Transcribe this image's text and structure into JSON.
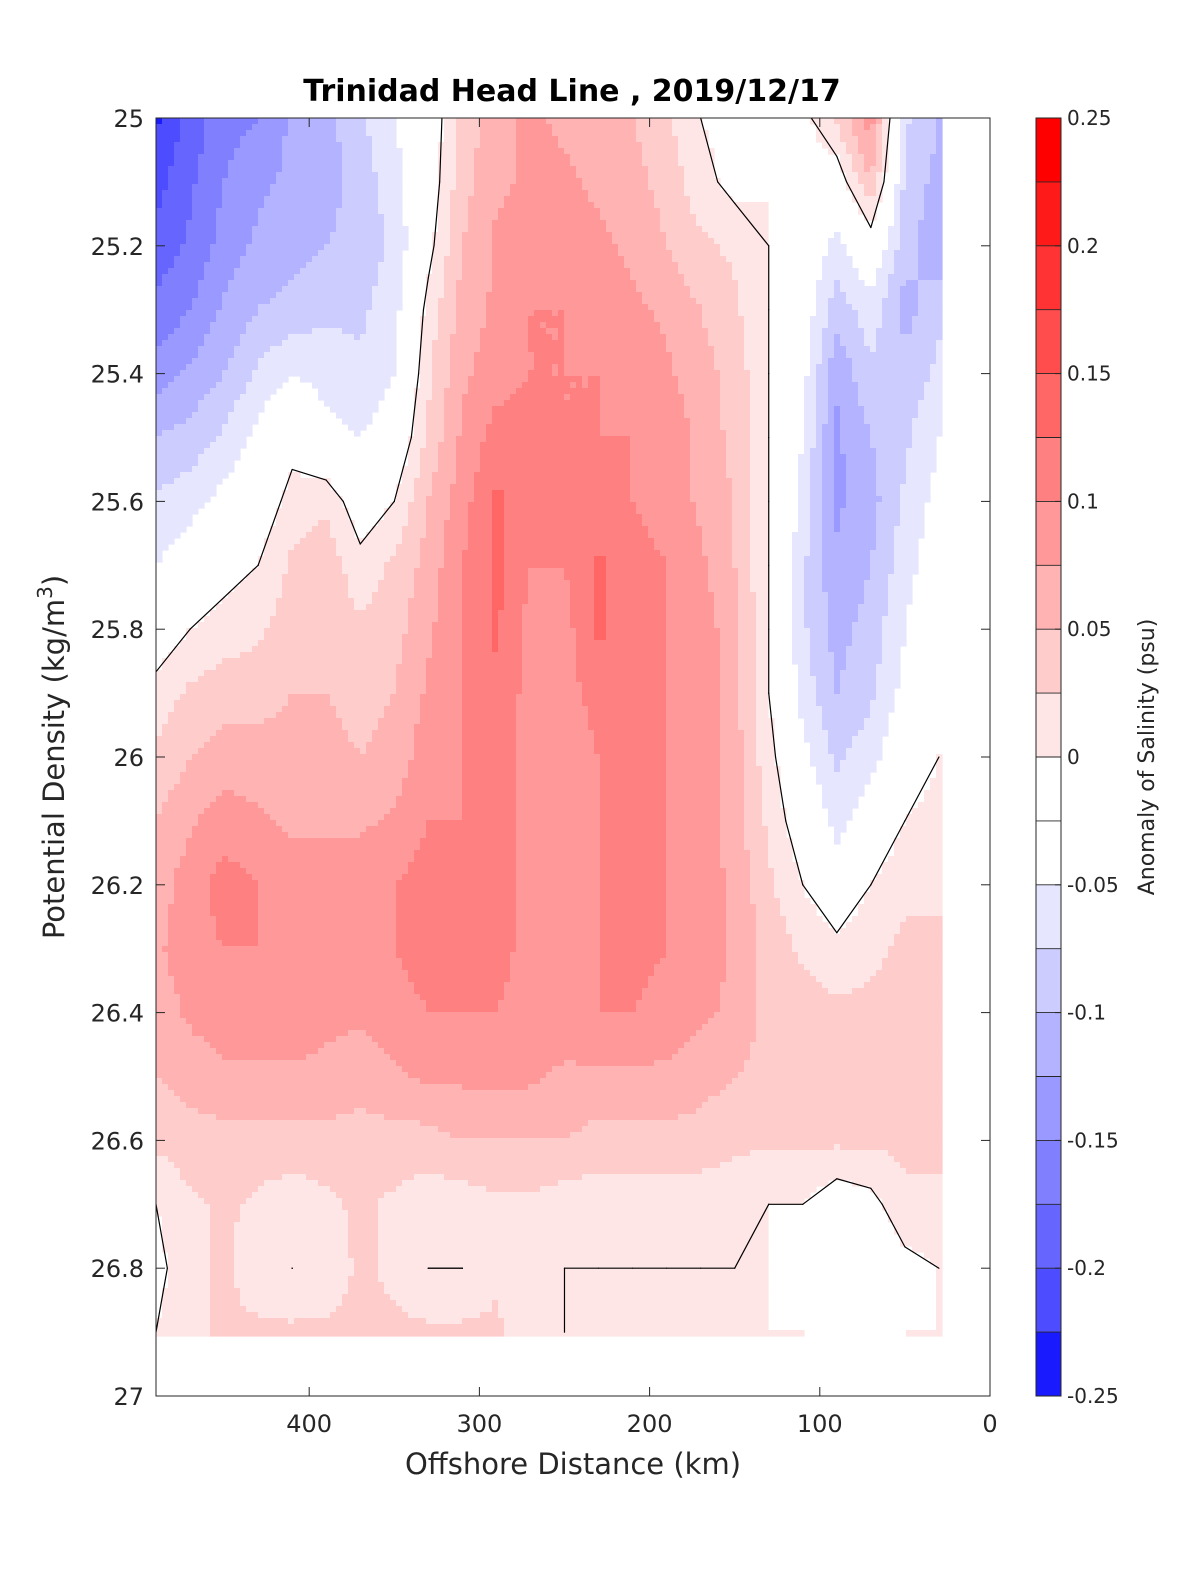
{
  "chart_data": {
    "type": "contour",
    "title": "Trinidad Head Line , 2019/12/17",
    "xlabel": "Offshore Distance (km)",
    "ylabel_main": "Potential Density (kg/m",
    "ylabel_sup": "3",
    "ylabel_close": ")",
    "xlim": [
      490,
      0
    ],
    "ylim": [
      25,
      27
    ],
    "y_reversed": true,
    "x_ticks": [
      "400",
      "300",
      "200",
      "100",
      "0"
    ],
    "x_tick_values": [
      400,
      300,
      200,
      100,
      0
    ],
    "y_ticks": [
      "25",
      "25.2",
      "25.4",
      "25.6",
      "25.8",
      "26",
      "26.2",
      "26.4",
      "26.6",
      "26.8",
      "27"
    ],
    "y_tick_values": [
      25,
      25.2,
      25.4,
      25.6,
      25.8,
      26,
      26.2,
      26.4,
      26.6,
      26.8,
      27
    ],
    "grid": false,
    "colorbar": {
      "label": "Anomaly of Salinity (psu)",
      "range": [
        -0.25,
        0.25
      ],
      "tick_labels": [
        "0.25",
        "0.2",
        "0.15",
        "0.1",
        "0.05",
        "0",
        "-0.05",
        "-0.1",
        "-0.15",
        "-0.2",
        "-0.25"
      ],
      "tick_values": [
        0.25,
        0.2,
        0.15,
        0.1,
        0.05,
        0,
        -0.05,
        -0.1,
        -0.15,
        -0.2,
        -0.25
      ],
      "levels": [
        {
          "lo": 0.225,
          "hi": 0.25,
          "color": "#ff0000"
        },
        {
          "lo": 0.2,
          "hi": 0.225,
          "color": "#ff1a1a"
        },
        {
          "lo": 0.175,
          "hi": 0.2,
          "color": "#ff3333"
        },
        {
          "lo": 0.15,
          "hi": 0.175,
          "color": "#ff4d4d"
        },
        {
          "lo": 0.125,
          "hi": 0.15,
          "color": "#ff6666"
        },
        {
          "lo": 0.1,
          "hi": 0.125,
          "color": "#ff8080"
        },
        {
          "lo": 0.075,
          "hi": 0.1,
          "color": "#ff9999"
        },
        {
          "lo": 0.05,
          "hi": 0.075,
          "color": "#ffb3b3"
        },
        {
          "lo": 0.025,
          "hi": 0.05,
          "color": "#ffcccc"
        },
        {
          "lo": 0.0,
          "hi": 0.025,
          "color": "#ffe6e6"
        },
        {
          "lo": -0.025,
          "hi": 0.0,
          "color": "#ffffff"
        },
        {
          "lo": -0.05,
          "hi": -0.025,
          "color": "#ffffff"
        },
        {
          "lo": -0.075,
          "hi": -0.05,
          "color": "#e6e6ff"
        },
        {
          "lo": -0.1,
          "hi": -0.075,
          "color": "#ccccff"
        },
        {
          "lo": -0.125,
          "hi": -0.1,
          "color": "#b3b3ff"
        },
        {
          "lo": -0.15,
          "hi": -0.125,
          "color": "#9999ff"
        },
        {
          "lo": -0.175,
          "hi": -0.15,
          "color": "#8080ff"
        },
        {
          "lo": -0.2,
          "hi": -0.175,
          "color": "#6666ff"
        },
        {
          "lo": -0.225,
          "hi": -0.2,
          "color": "#4d4dff"
        },
        {
          "lo": -0.25,
          "hi": -0.225,
          "color": "#1a1aff"
        }
      ]
    },
    "x_grid_km": [
      490,
      470,
      450,
      430,
      410,
      390,
      370,
      350,
      330,
      310,
      290,
      270,
      250,
      230,
      210,
      190,
      170,
      150,
      130,
      110,
      90,
      70,
      50,
      30
    ],
    "y_grid_sigma": [
      25.0,
      25.1,
      25.2,
      25.3,
      25.4,
      25.5,
      25.6,
      25.7,
      25.8,
      25.9,
      26.0,
      26.1,
      26.2,
      26.3,
      26.4,
      26.5,
      26.6,
      26.7,
      26.8,
      26.9
    ],
    "anomaly_grid": [
      [
        -0.23,
        -0.19,
        -0.16,
        -0.15,
        -0.12,
        -0.11,
        -0.08,
        -0.05,
        -0.02,
        0.03,
        0.07,
        0.08,
        0.07,
        0.06,
        0.05,
        0.03,
        0.0,
        -0.01,
        0.0,
        -0.01,
        0.03,
        0.09,
        -0.07,
        -0.1
      ],
      [
        -0.21,
        -0.18,
        -0.15,
        -0.13,
        -0.12,
        -0.11,
        -0.09,
        -0.06,
        -0.02,
        0.04,
        0.07,
        0.08,
        0.08,
        0.07,
        0.06,
        0.04,
        0.01,
        -0.01,
        0.0,
        -0.01,
        -0.02,
        0.05,
        -0.08,
        -0.11
      ],
      [
        -0.19,
        -0.17,
        -0.14,
        -0.12,
        -0.11,
        -0.1,
        -0.09,
        -0.07,
        -0.01,
        0.05,
        0.08,
        0.09,
        0.09,
        0.08,
        0.07,
        0.05,
        0.03,
        0.02,
        0.0,
        -0.02,
        -0.06,
        -0.02,
        -0.09,
        -0.12
      ],
      [
        -0.17,
        -0.15,
        -0.12,
        -0.1,
        -0.09,
        -0.08,
        -0.08,
        -0.06,
        0.01,
        0.06,
        0.08,
        0.1,
        0.1,
        0.09,
        0.08,
        0.07,
        0.05,
        0.03,
        0.0,
        -0.03,
        -0.09,
        -0.06,
        -0.11,
        -0.08
      ],
      [
        -0.14,
        -0.12,
        -0.1,
        -0.07,
        -0.05,
        -0.06,
        -0.07,
        -0.05,
        0.02,
        0.07,
        0.09,
        0.1,
        0.1,
        0.1,
        0.09,
        0.08,
        0.06,
        0.04,
        0.0,
        -0.04,
        -0.12,
        -0.08,
        -0.09,
        -0.07
      ],
      [
        -0.1,
        -0.09,
        -0.07,
        -0.04,
        -0.01,
        -0.04,
        -0.05,
        -0.03,
        0.03,
        0.08,
        0.11,
        0.11,
        0.1,
        0.1,
        0.1,
        0.09,
        0.07,
        0.04,
        0.0,
        -0.05,
        -0.13,
        -0.1,
        -0.08,
        -0.05
      ],
      [
        -0.07,
        -0.06,
        -0.04,
        -0.02,
        0.01,
        0.02,
        -0.02,
        0.0,
        0.05,
        0.09,
        0.13,
        0.11,
        0.1,
        0.11,
        0.1,
        0.09,
        0.07,
        0.05,
        0.0,
        -0.06,
        -0.13,
        -0.11,
        -0.07,
        -0.04
      ],
      [
        -0.05,
        -0.03,
        -0.01,
        0.0,
        0.03,
        0.04,
        0.01,
        0.03,
        0.06,
        0.1,
        0.13,
        0.1,
        0.1,
        0.13,
        0.11,
        0.1,
        0.08,
        0.05,
        0.0,
        -0.07,
        -0.12,
        -0.1,
        -0.06,
        -0.03
      ],
      [
        -0.02,
        0.0,
        0.01,
        0.02,
        0.04,
        0.04,
        0.03,
        0.04,
        0.07,
        0.1,
        0.13,
        0.09,
        0.09,
        0.13,
        0.11,
        0.1,
        0.09,
        0.06,
        0.0,
        -0.07,
        -0.11,
        -0.09,
        -0.05,
        -0.02
      ],
      [
        0.01,
        0.03,
        0.04,
        0.04,
        0.05,
        0.05,
        0.04,
        0.05,
        0.08,
        0.1,
        0.12,
        0.09,
        0.09,
        0.11,
        0.11,
        0.1,
        0.09,
        0.06,
        0.0,
        -0.06,
        -0.1,
        -0.08,
        -0.04,
        -0.01
      ],
      [
        0.03,
        0.05,
        0.06,
        0.06,
        0.06,
        0.06,
        0.05,
        0.06,
        0.09,
        0.1,
        0.11,
        0.09,
        0.08,
        0.1,
        0.11,
        0.1,
        0.09,
        0.06,
        0.01,
        -0.04,
        -0.08,
        -0.06,
        -0.02,
        0.0
      ],
      [
        0.05,
        0.07,
        0.09,
        0.08,
        0.07,
        0.07,
        0.07,
        0.08,
        0.1,
        0.1,
        0.11,
        0.09,
        0.08,
        0.1,
        0.11,
        0.1,
        0.09,
        0.06,
        0.02,
        -0.02,
        -0.06,
        -0.03,
        0.0,
        0.01
      ],
      [
        0.06,
        0.09,
        0.11,
        0.1,
        0.09,
        0.09,
        0.09,
        0.1,
        0.11,
        0.11,
        0.11,
        0.09,
        0.08,
        0.1,
        0.11,
        0.1,
        0.09,
        0.07,
        0.03,
        0.0,
        -0.03,
        0.0,
        0.02,
        0.02
      ],
      [
        0.07,
        0.09,
        0.1,
        0.1,
        0.09,
        0.09,
        0.09,
        0.1,
        0.11,
        0.11,
        0.11,
        0.09,
        0.08,
        0.1,
        0.11,
        0.1,
        0.09,
        0.07,
        0.04,
        0.02,
        0.01,
        0.02,
        0.03,
        0.03
      ],
      [
        0.06,
        0.08,
        0.09,
        0.09,
        0.09,
        0.08,
        0.08,
        0.09,
        0.1,
        0.1,
        0.1,
        0.09,
        0.09,
        0.1,
        0.1,
        0.09,
        0.08,
        0.07,
        0.04,
        0.04,
        0.03,
        0.03,
        0.03,
        0.03
      ],
      [
        0.05,
        0.06,
        0.07,
        0.07,
        0.07,
        0.07,
        0.06,
        0.07,
        0.08,
        0.08,
        0.08,
        0.08,
        0.07,
        0.07,
        0.07,
        0.07,
        0.06,
        0.05,
        0.04,
        0.04,
        0.04,
        0.04,
        0.04,
        0.03
      ],
      [
        0.03,
        0.04,
        0.04,
        0.04,
        0.04,
        0.04,
        0.04,
        0.04,
        0.04,
        0.05,
        0.05,
        0.05,
        0.05,
        0.04,
        0.04,
        0.04,
        0.04,
        0.03,
        0.03,
        0.03,
        0.03,
        0.03,
        0.03,
        0.03
      ],
      [
        0.0,
        0.02,
        0.03,
        0.02,
        0.01,
        0.02,
        0.03,
        0.02,
        0.01,
        0.01,
        0.02,
        0.02,
        0.01,
        0.01,
        0.01,
        0.01,
        0.01,
        0.01,
        0.0,
        0.0,
        -0.02,
        -0.01,
        0.02,
        0.02
      ],
      [
        -0.01,
        0.02,
        0.03,
        0.01,
        0.0,
        0.01,
        0.03,
        0.02,
        0.0,
        0.0,
        0.02,
        0.01,
        0.0,
        0.0,
        0.0,
        0.0,
        0.0,
        0.0,
        0.0,
        -0.01,
        -0.03,
        -0.03,
        -0.01,
        0.0
      ],
      [
        0.0,
        0.02,
        0.03,
        0.03,
        0.03,
        0.03,
        0.03,
        0.03,
        0.03,
        0.03,
        0.03,
        0.01,
        0.0,
        0.0,
        0.0,
        0.0,
        0.0,
        0.0,
        0.0,
        0.0,
        -0.03,
        -0.03,
        0.0,
        0.0
      ]
    ]
  }
}
